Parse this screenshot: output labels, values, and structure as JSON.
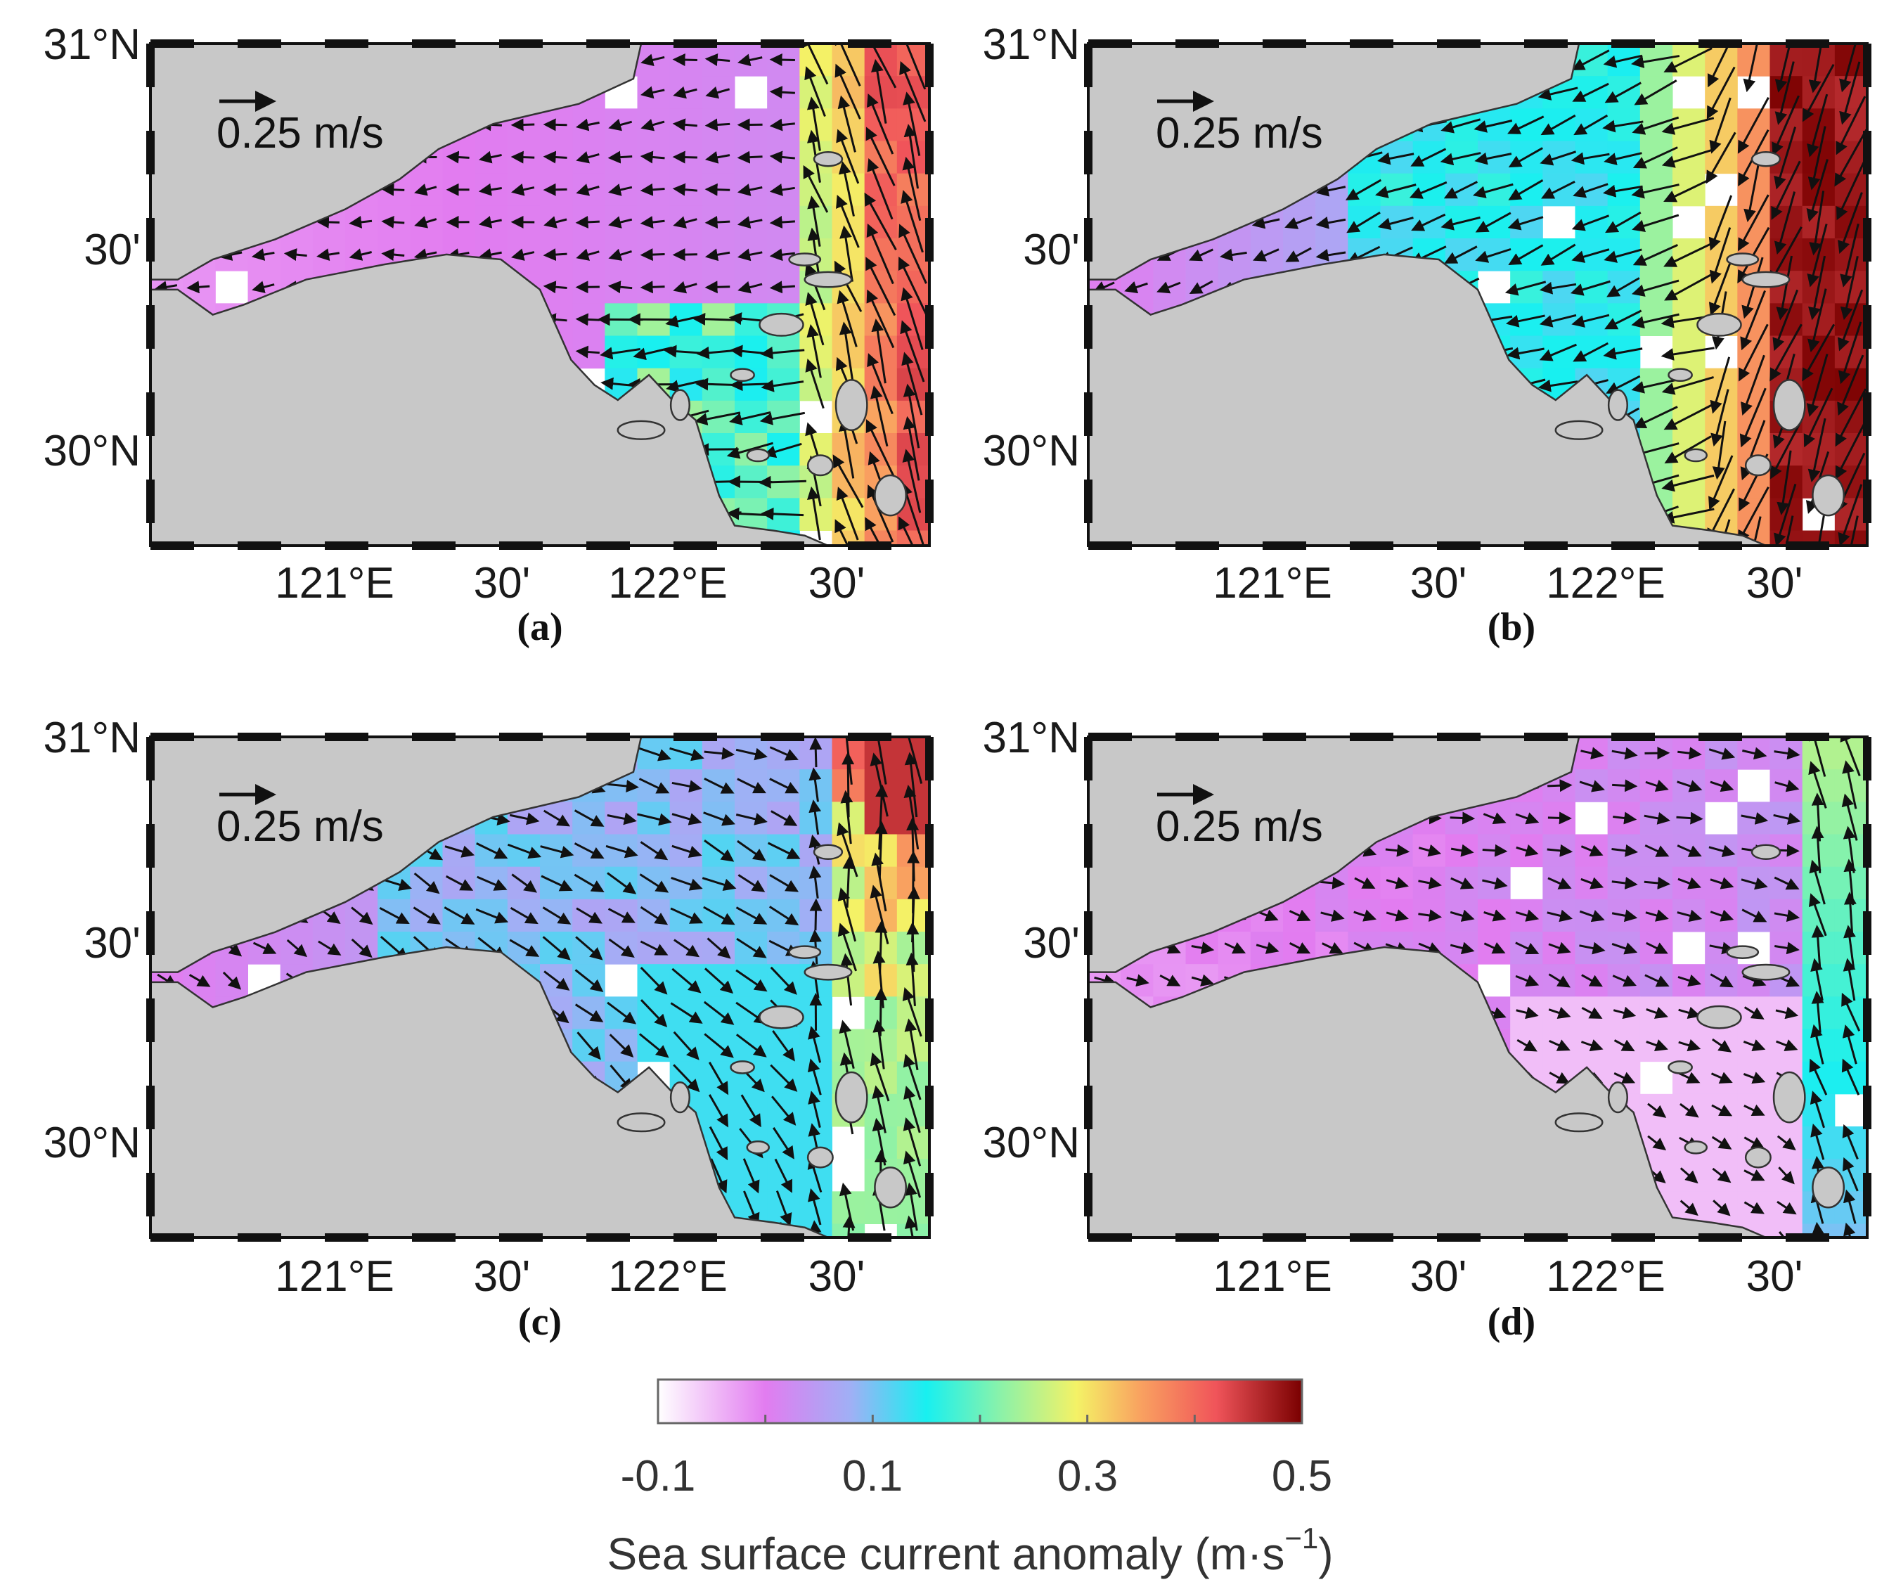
{
  "panels": [
    {
      "label": "(a)",
      "scenario": "a"
    },
    {
      "label": "(b)",
      "scenario": "b"
    },
    {
      "label": "(c)",
      "scenario": "c"
    },
    {
      "label": "(d)",
      "scenario": "d"
    }
  ],
  "axes": {
    "lat_ticks": [
      "31°N",
      "30'",
      "30°N"
    ],
    "lon_ticks": [
      "121°E",
      "30'",
      "122°E",
      "30'"
    ],
    "lat_range": [
      29.85,
      31.0
    ],
    "lon_range": [
      120.5,
      122.75
    ]
  },
  "scale_arrow": {
    "label": "0.25 m/s",
    "value": 0.25
  },
  "colorbar": {
    "title": "Sea surface current anomaly (m·s",
    "title_exponent": "−1",
    "title_close": ")",
    "tick_labels": [
      "-0.1",
      "0.1",
      "0.3",
      "0.5"
    ],
    "ticks": [
      -0.1,
      0.1,
      0.3,
      0.5
    ],
    "range": [
      -0.1,
      0.5
    ],
    "stops": [
      {
        "v": -0.1,
        "color": "#ffffff"
      },
      {
        "v": 0.0,
        "color": "#e27cf0"
      },
      {
        "v": 0.08,
        "color": "#9fb0f5"
      },
      {
        "v": 0.15,
        "color": "#18f0f0"
      },
      {
        "v": 0.22,
        "color": "#8cf2a8"
      },
      {
        "v": 0.29,
        "color": "#f4f266"
      },
      {
        "v": 0.35,
        "color": "#f9a160"
      },
      {
        "v": 0.42,
        "color": "#f0545a"
      },
      {
        "v": 0.5,
        "color": "#7a0000"
      }
    ]
  },
  "colors": {
    "land": "#c8c8c8",
    "frame": "#111111",
    "arrow": "#111111",
    "undefined_cell": "#ffffff"
  },
  "chart_data": {
    "type": "heatmap",
    "description": "Four map panels of sea surface current anomaly (colour) with current vectors (arrows), Hangzhou Bay / Zhoushan region",
    "value_units": "m·s^-1",
    "panels": [
      "a",
      "b",
      "c",
      "d"
    ]
  }
}
